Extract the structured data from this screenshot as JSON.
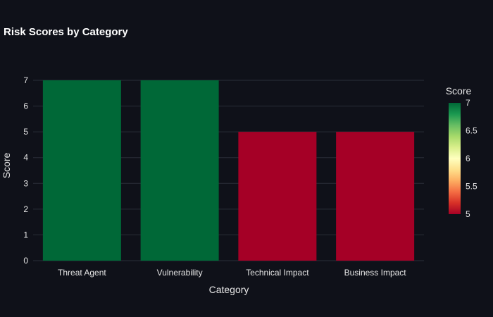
{
  "chart_data": {
    "type": "bar",
    "title": "Risk Scores by Category",
    "xlabel": "Category",
    "ylabel": "Score",
    "categories": [
      "Threat Agent",
      "Vulnerability",
      "Technical Impact",
      "Business Impact"
    ],
    "values": [
      7,
      7,
      5,
      5
    ],
    "ylim": [
      0,
      7
    ],
    "yticks": [
      0,
      1,
      2,
      3,
      4,
      5,
      6,
      7
    ],
    "grid": true,
    "colorbar": {
      "title": "Score",
      "range": [
        5,
        7
      ],
      "ticks": [
        "5",
        "5.5",
        "6",
        "6.5",
        "7"
      ],
      "colorscale": "RdYlGn",
      "placement": "right"
    }
  },
  "colors": {
    "background": "#0f1119",
    "grid": "#2a2e39",
    "text": "#ffffff",
    "tick_text": "#e6e6e6",
    "low": "#a50026",
    "high": "#006837"
  }
}
